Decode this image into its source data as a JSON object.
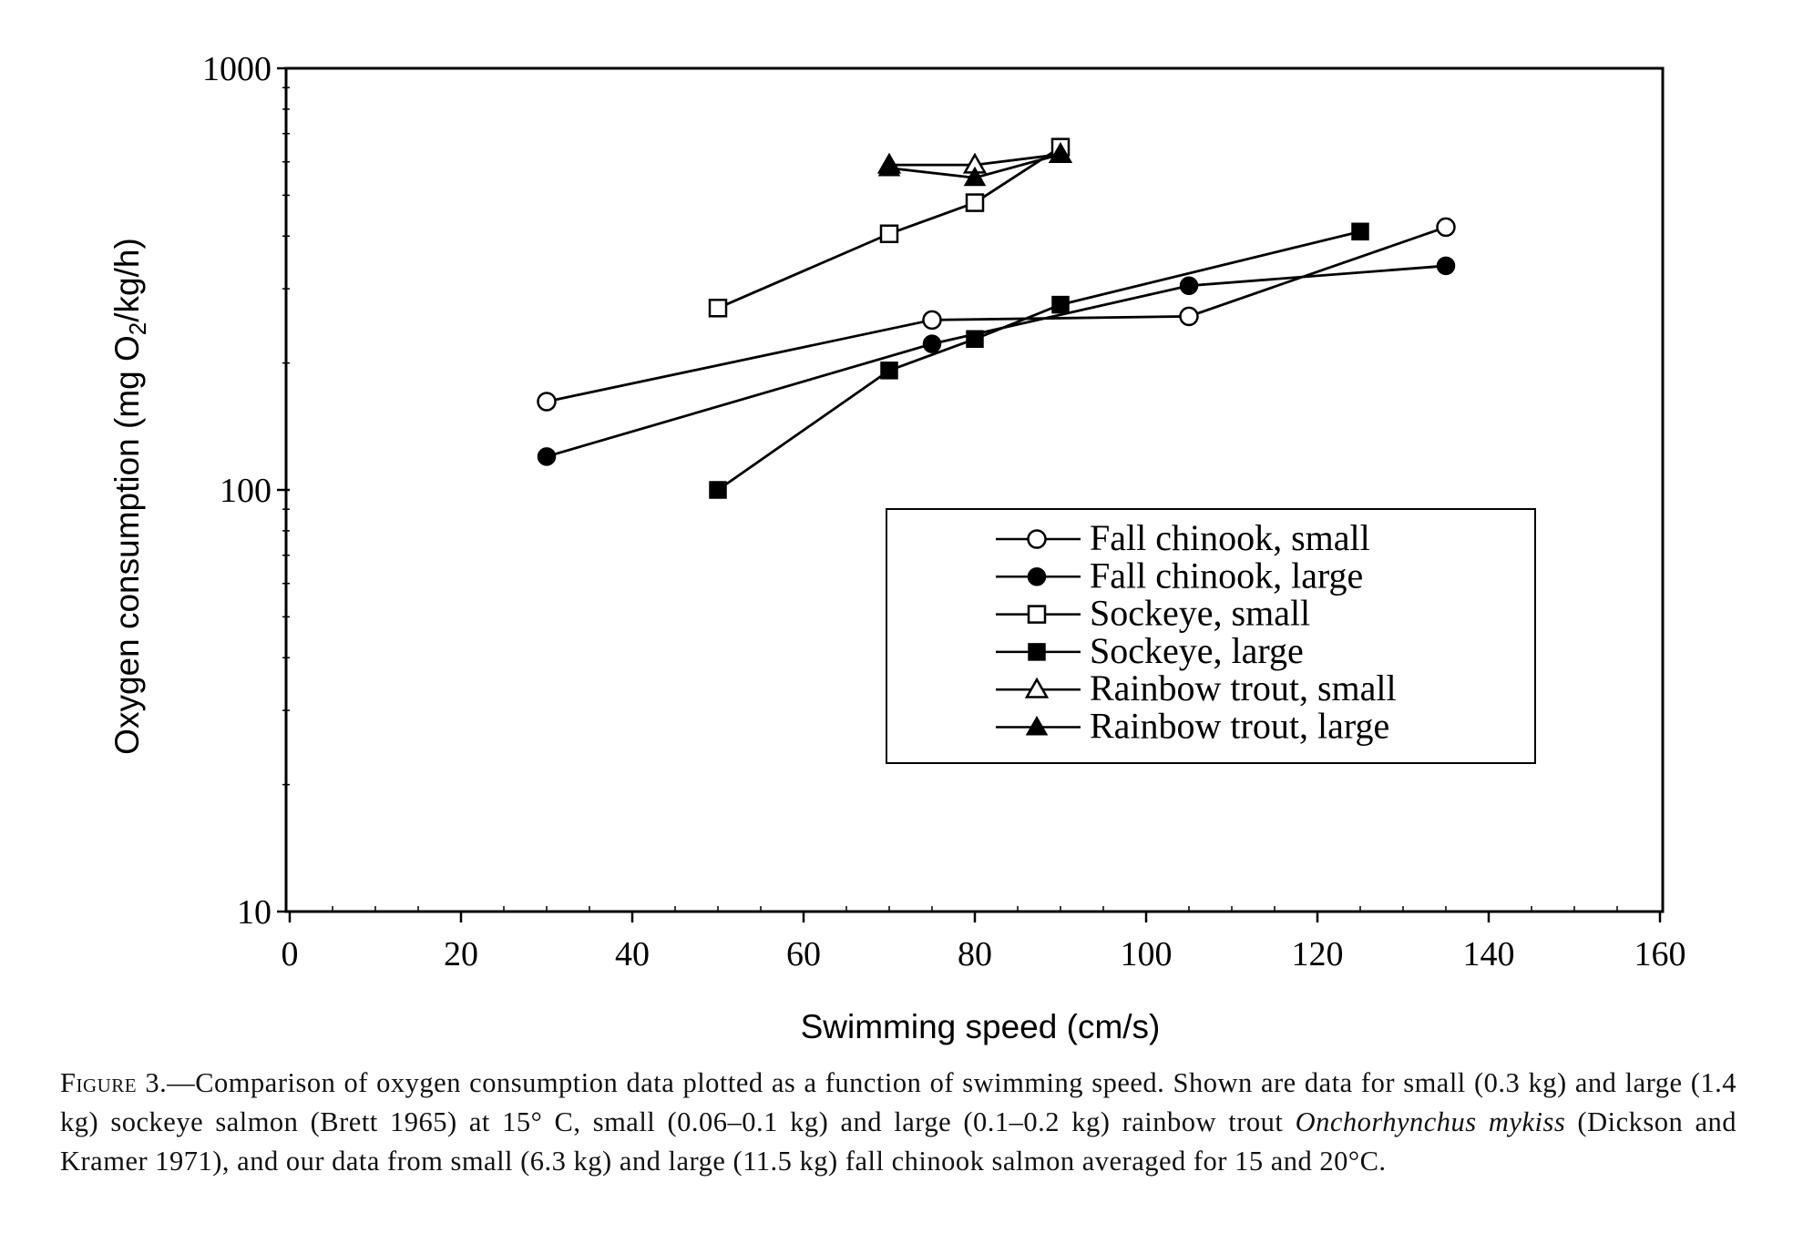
{
  "chart_data": {
    "type": "scatter",
    "xlabel": "Swimming speed (cm/s)",
    "ylabel": "Oxygen consumption (mg O2/kg/h)",
    "ylabel_parts": {
      "pre": "Oxygen consumption (mg O",
      "sub": "2",
      "post": "/kg/h)"
    },
    "xlim": [
      0,
      160
    ],
    "ylim": [
      10,
      1000
    ],
    "yscale": "log",
    "x_ticks": [
      "0",
      "20",
      "40",
      "60",
      "80",
      "100",
      "120",
      "140",
      "160"
    ],
    "y_ticks": [
      "10",
      "100",
      "1000"
    ],
    "grid": false,
    "legend_position": "center-right",
    "series": [
      {
        "name": "Fall chinook, small",
        "marker": "circle-open",
        "x": [
          30,
          75,
          105,
          135
        ],
        "y": [
          162,
          253,
          258,
          420
        ]
      },
      {
        "name": "Fall chinook, large",
        "marker": "circle-filled",
        "x": [
          30,
          75,
          105,
          135
        ],
        "y": [
          120,
          222,
          305,
          340
        ]
      },
      {
        "name": "Sockeye, small",
        "marker": "square-open",
        "x": [
          50,
          70,
          80,
          90
        ],
        "y": [
          270,
          405,
          480,
          650
        ]
      },
      {
        "name": "Sockeye, large",
        "marker": "square-filled",
        "x": [
          50,
          70,
          80,
          90,
          125
        ],
        "y": [
          100,
          192,
          228,
          275,
          410
        ]
      },
      {
        "name": "Rainbow trout, small",
        "marker": "triangle-open",
        "x": [
          70,
          80,
          90
        ],
        "y": [
          590,
          590,
          625
        ]
      },
      {
        "name": "Rainbow trout, large",
        "marker": "triangle-filled",
        "x": [
          70,
          80,
          90
        ],
        "y": [
          580,
          550,
          625
        ]
      }
    ]
  },
  "caption": {
    "lead": "Figure 3.",
    "before_species": "—Comparison of oxygen consumption data plotted as a function of swimming speed. Shown are data for small (0.3 kg) and large (1.4 kg) sockeye salmon (Brett 1965) at 15° C, small (0.06–0.1 kg) and large (0.1–0.2 kg) rainbow trout ",
    "species": "Onchorhynchus mykiss",
    "after_species": " (Dickson and Kramer 1971), and our data from small (6.3 kg) and large (11.5 kg) fall chinook salmon averaged for 15 and 20°C."
  },
  "colors": {
    "ink": "#000000",
    "background": "#ffffff"
  }
}
